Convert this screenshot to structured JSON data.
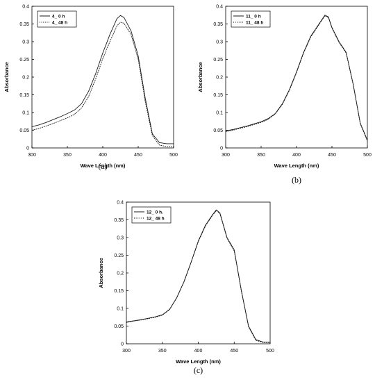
{
  "chart_data": [
    {
      "type": "line",
      "panel_label": "(a)",
      "xlabel": "Wave Length (nm)",
      "ylabel": "Absorbance",
      "xlim": [
        300,
        500
      ],
      "ylim": [
        0,
        0.4
      ],
      "xticks": [
        300,
        350,
        400,
        450,
        500
      ],
      "yticks": [
        0,
        0.05,
        0.1,
        0.15,
        0.2,
        0.25,
        0.3,
        0.35,
        0.4
      ],
      "grid": false,
      "legend": "top-left",
      "series": [
        {
          "name": "4_ 0 h",
          "style": "solid",
          "x": [
            300,
            310,
            320,
            330,
            340,
            350,
            360,
            370,
            380,
            390,
            400,
            410,
            420,
            425,
            430,
            440,
            450,
            460,
            470,
            480,
            490,
            500
          ],
          "values": [
            0.06,
            0.065,
            0.072,
            0.08,
            0.088,
            0.097,
            0.107,
            0.125,
            0.16,
            0.21,
            0.268,
            0.32,
            0.365,
            0.374,
            0.368,
            0.33,
            0.26,
            0.14,
            0.04,
            0.015,
            0.012,
            0.012
          ]
        },
        {
          "name": "4_ 48 h",
          "style": "dotted",
          "x": [
            300,
            310,
            320,
            330,
            340,
            350,
            360,
            370,
            380,
            390,
            400,
            410,
            420,
            425,
            430,
            440,
            450,
            460,
            470,
            480,
            490,
            500
          ],
          "values": [
            0.05,
            0.055,
            0.062,
            0.069,
            0.077,
            0.085,
            0.095,
            0.113,
            0.145,
            0.195,
            0.252,
            0.3,
            0.345,
            0.355,
            0.352,
            0.32,
            0.25,
            0.13,
            0.035,
            0.008,
            0.004,
            0.003
          ]
        }
      ]
    },
    {
      "type": "line",
      "panel_label": "(b)",
      "xlabel": "Wave Length (nm)",
      "ylabel": "Absorbance",
      "xlim": [
        300,
        500
      ],
      "ylim": [
        0,
        0.4
      ],
      "xticks": [
        300,
        350,
        400,
        450,
        500
      ],
      "yticks": [
        0,
        0.05,
        0.1,
        0.15,
        0.2,
        0.25,
        0.3,
        0.35,
        0.4
      ],
      "grid": false,
      "legend": "top-left",
      "series": [
        {
          "name": "11_ 0 h",
          "style": "solid",
          "x": [
            300,
            310,
            320,
            330,
            340,
            350,
            360,
            370,
            380,
            390,
            400,
            410,
            420,
            430,
            440,
            445,
            450,
            460,
            470,
            480,
            490,
            500
          ],
          "values": [
            0.048,
            0.052,
            0.057,
            0.062,
            0.068,
            0.074,
            0.083,
            0.097,
            0.125,
            0.165,
            0.215,
            0.27,
            0.315,
            0.345,
            0.375,
            0.37,
            0.34,
            0.3,
            0.27,
            0.18,
            0.07,
            0.022
          ]
        },
        {
          "name": "11_ 48 h",
          "style": "dotted",
          "x": [
            300,
            310,
            320,
            330,
            340,
            350,
            360,
            370,
            380,
            390,
            400,
            410,
            420,
            430,
            440,
            445,
            450,
            460,
            470,
            480,
            490,
            500
          ],
          "values": [
            0.046,
            0.05,
            0.055,
            0.06,
            0.066,
            0.072,
            0.081,
            0.096,
            0.123,
            0.163,
            0.213,
            0.268,
            0.313,
            0.343,
            0.373,
            0.368,
            0.338,
            0.298,
            0.268,
            0.178,
            0.068,
            0.02
          ]
        }
      ]
    },
    {
      "type": "line",
      "panel_label": "(c)",
      "xlabel": "Wave Length (nm)",
      "ylabel": "Absorbance",
      "xlim": [
        300,
        500
      ],
      "ylim": [
        0,
        0.4
      ],
      "xticks": [
        300,
        350,
        400,
        450,
        500
      ],
      "yticks": [
        0,
        0.05,
        0.1,
        0.15,
        0.2,
        0.25,
        0.3,
        0.35,
        0.4
      ],
      "grid": false,
      "legend": "top-left",
      "series": [
        {
          "name": "12_ 0 h.",
          "style": "solid",
          "x": [
            300,
            310,
            320,
            330,
            340,
            350,
            360,
            370,
            380,
            390,
            400,
            410,
            420,
            425,
            430,
            440,
            450,
            460,
            470,
            480,
            490,
            500
          ],
          "values": [
            0.062,
            0.065,
            0.068,
            0.072,
            0.076,
            0.082,
            0.097,
            0.13,
            0.175,
            0.23,
            0.29,
            0.335,
            0.365,
            0.378,
            0.37,
            0.3,
            0.265,
            0.15,
            0.05,
            0.012,
            0.005,
            0.005
          ]
        },
        {
          "name": "12_ 48 h",
          "style": "dotted",
          "x": [
            300,
            310,
            320,
            330,
            340,
            350,
            360,
            370,
            380,
            390,
            400,
            410,
            420,
            425,
            430,
            440,
            450,
            460,
            470,
            480,
            490,
            500
          ],
          "values": [
            0.06,
            0.064,
            0.067,
            0.071,
            0.075,
            0.081,
            0.096,
            0.129,
            0.174,
            0.229,
            0.288,
            0.333,
            0.363,
            0.376,
            0.368,
            0.298,
            0.262,
            0.148,
            0.048,
            0.01,
            0.004,
            0.004
          ]
        }
      ]
    }
  ]
}
